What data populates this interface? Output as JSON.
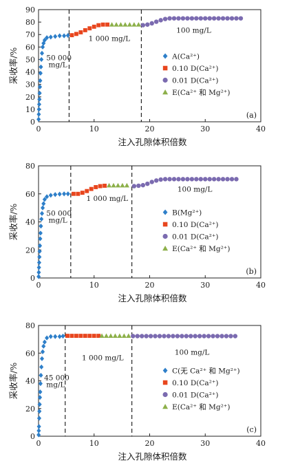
{
  "chart_data": [
    {
      "type": "scatter",
      "panel_label": "(a)",
      "xlabel": "注入孔隙体积倍数",
      "ylabel": "采收率/%",
      "xlim": [
        0,
        40
      ],
      "ylim": [
        0,
        90
      ],
      "xticks": [
        0,
        10,
        20,
        30,
        40
      ],
      "yticks": [
        0,
        10,
        20,
        30,
        40,
        50,
        60,
        70,
        80,
        90
      ],
      "grid": false,
      "legend_position": "lower-right",
      "boundaries": [
        5.5,
        18.5
      ],
      "annotations": [
        {
          "text": "50 000",
          "x": 1.4,
          "y": 49.5
        },
        {
          "text": "mg/L",
          "x": 1.8,
          "y": 44.0
        },
        {
          "text": "1 000 mg/L",
          "x": 9.0,
          "y": 65.0
        },
        {
          "text": "100 mg/L",
          "x": 24.8,
          "y": 71.5
        }
      ],
      "series": [
        {
          "name": "A(Ca²⁺)",
          "marker": "diamond",
          "color": "#2e7fc9",
          "x": [
            0.02,
            0.05,
            0.08,
            0.12,
            0.16,
            0.2,
            0.25,
            0.3,
            0.36,
            0.43,
            0.52,
            0.62,
            0.75,
            0.9,
            1.1,
            1.5,
            2.2,
            3.0,
            3.8,
            4.6,
            5.3
          ],
          "y": [
            2,
            6,
            10,
            14,
            18,
            23,
            28,
            33,
            39,
            44,
            50,
            55,
            60,
            63,
            65.5,
            67.5,
            68,
            68.5,
            69,
            69,
            69.3
          ]
        },
        {
          "name": "0.10 D(Ca²⁺)",
          "marker": "square",
          "color": "#e8461e",
          "x": [
            6.0,
            6.8,
            7.6,
            8.4,
            9.2,
            10.0,
            10.8,
            11.6,
            12.4
          ],
          "y": [
            69.5,
            70.5,
            71.8,
            73.5,
            75,
            76.3,
            77.5,
            78,
            78
          ]
        },
        {
          "name": "0.01 D(Ca²⁺)",
          "marker": "circle",
          "color": "#7b6bb0",
          "x": [
            18.8,
            19.6,
            20.4,
            21.2,
            22.0,
            22.8,
            23.6,
            24.4,
            25.2,
            26.0,
            26.8,
            27.6,
            28.4,
            29.2,
            30.0,
            30.8,
            31.6,
            32.4,
            33.2,
            34.0,
            34.8,
            35.6,
            36.4
          ],
          "y": [
            77.5,
            78,
            79,
            80.3,
            81.5,
            82.5,
            83,
            83,
            83,
            83,
            83,
            83,
            83,
            83,
            83,
            83,
            83,
            83,
            83,
            83,
            83,
            83,
            83
          ]
        },
        {
          "name": "E(Ca²⁺ 和 Mg²⁺)",
          "marker": "triangle",
          "color": "#8db04a",
          "x": [
            13.2,
            14.0,
            14.8,
            15.6,
            16.4,
            17.2,
            18.0
          ],
          "y": [
            78,
            78,
            78,
            78,
            78,
            78,
            78
          ]
        }
      ]
    },
    {
      "type": "scatter",
      "panel_label": "(b)",
      "xlabel": "注入孔隙体积倍数",
      "ylabel": "采收率/%",
      "xlim": [
        0,
        40
      ],
      "ylim": [
        0,
        80
      ],
      "xticks": [
        0,
        10,
        20,
        30,
        40
      ],
      "yticks": [
        0,
        20,
        40,
        60,
        80
      ],
      "grid": false,
      "legend_position": "lower-right",
      "boundaries": [
        5.8,
        16.8
      ],
      "annotations": [
        {
          "text": "50 000",
          "x": 1.4,
          "y": 44.5
        },
        {
          "text": "mg/L",
          "x": 1.8,
          "y": 39.5
        },
        {
          "text": "1 000 mg/L",
          "x": 8.6,
          "y": 55.0
        },
        {
          "text": "100 mg/L",
          "x": 25.0,
          "y": 61.5
        }
      ],
      "series": [
        {
          "name": "B(Mg²⁺)",
          "marker": "diamond",
          "color": "#2e7fc9",
          "x": [
            0.02,
            0.05,
            0.08,
            0.12,
            0.16,
            0.2,
            0.25,
            0.3,
            0.36,
            0.43,
            0.52,
            0.62,
            0.75,
            0.9,
            1.1,
            1.5,
            2.2,
            3.0,
            3.8,
            4.6,
            5.3
          ],
          "y": [
            1,
            4,
            7.5,
            11,
            15,
            19,
            23,
            28,
            32,
            37,
            42,
            46,
            50,
            53,
            56,
            58,
            59,
            59.5,
            59.8,
            60,
            60
          ]
        },
        {
          "name": "0.10 D(Ca²⁺)",
          "marker": "square",
          "color": "#e8461e",
          "x": [
            6.3,
            7.1,
            7.9,
            8.7,
            9.5,
            10.3,
            11.1,
            11.9
          ],
          "y": [
            60,
            60,
            60.8,
            62,
            63.5,
            64.8,
            65.5,
            65.8
          ]
        },
        {
          "name": "0.01 D(Ca²⁺)",
          "marker": "circle",
          "color": "#7b6bb0",
          "x": [
            17.2,
            18.0,
            18.8,
            19.6,
            20.4,
            21.2,
            22.0,
            22.8,
            23.6,
            24.4,
            25.2,
            26.0,
            26.8,
            27.6,
            28.4,
            29.2,
            30.0,
            30.8,
            31.6,
            32.4,
            33.2,
            34.0,
            34.8,
            35.6
          ],
          "y": [
            65.5,
            65.8,
            66.2,
            67.2,
            68.5,
            69.5,
            70.2,
            70.5,
            70.5,
            70.5,
            70.5,
            70.5,
            70.5,
            70.5,
            70.5,
            70.5,
            70.5,
            70.5,
            70.5,
            70.5,
            70.5,
            70.5,
            70.5,
            70.5
          ]
        },
        {
          "name": "E(Ca²⁺ 和 Mg²⁺)",
          "marker": "triangle",
          "color": "#8db04a",
          "x": [
            12.7,
            13.5,
            14.3,
            15.1,
            15.9
          ],
          "y": [
            66,
            66,
            66,
            66,
            66
          ]
        }
      ]
    },
    {
      "type": "scatter",
      "panel_label": "(c)",
      "xlabel": "注入孔隙体积倍数",
      "ylabel": "采收率/%",
      "xlim": [
        0,
        40
      ],
      "ylim": [
        0,
        80
      ],
      "xticks": [
        0,
        10,
        20,
        30,
        40
      ],
      "yticks": [
        0,
        20,
        40,
        60,
        80
      ],
      "grid": false,
      "legend_position": "lower-right",
      "boundaries": [
        4.8,
        16.8
      ],
      "annotations": [
        {
          "text": "45 000",
          "x": 1.0,
          "y": 40.5
        },
        {
          "text": "mg/L",
          "x": 1.4,
          "y": 35.5
        },
        {
          "text": "1 000 mg/L",
          "x": 7.8,
          "y": 55.0
        },
        {
          "text": "100 mg/L",
          "x": 24.5,
          "y": 59.0
        }
      ],
      "series": [
        {
          "name": "C(无 Ca²⁺ 和 Mg²⁺)",
          "marker": "diamond",
          "color": "#2e7fc9",
          "x": [
            0.02,
            0.05,
            0.08,
            0.12,
            0.16,
            0.2,
            0.25,
            0.3,
            0.36,
            0.43,
            0.52,
            0.62,
            0.75,
            0.9,
            1.1,
            1.5,
            2.2,
            3.0,
            3.8,
            4.4
          ],
          "y": [
            1,
            4,
            7,
            13,
            18,
            23,
            28,
            32,
            38,
            44,
            50,
            56,
            61,
            65,
            68,
            71,
            72,
            72,
            72,
            72.3
          ]
        },
        {
          "name": "0.10 D(Ca²⁺)",
          "marker": "square",
          "color": "#e8461e",
          "x": [
            5.2,
            6.0,
            6.8,
            7.6,
            8.4,
            9.2,
            10.0,
            10.8
          ],
          "y": [
            72.5,
            72.5,
            72.5,
            72.5,
            72.5,
            72.5,
            72.5,
            72.5
          ]
        },
        {
          "name": "0.01 D(Ca²⁺)",
          "marker": "circle",
          "color": "#7b6bb0",
          "x": [
            17.0,
            17.8,
            18.6,
            19.4,
            20.2,
            21.0,
            21.8,
            22.6,
            23.4,
            24.2,
            25.0,
            25.8,
            26.6,
            27.4,
            28.2,
            29.0,
            29.8,
            30.6,
            31.4,
            32.2,
            33.0,
            33.8,
            34.6,
            35.4
          ],
          "y": [
            72.3,
            72.3,
            72.3,
            72.3,
            72.3,
            72.3,
            72.3,
            72.3,
            72.3,
            72.3,
            72.3,
            72.3,
            72.3,
            72.3,
            72.3,
            72.3,
            72.3,
            72.3,
            72.3,
            72.3,
            72.3,
            72.3,
            72.3,
            72.3
          ]
        },
        {
          "name": "E(Ca²⁺ 和 Mg²⁺)",
          "marker": "triangle",
          "color": "#8db04a",
          "x": [
            11.4,
            12.2,
            13.0,
            13.8,
            14.6,
            15.4,
            16.2
          ],
          "y": [
            72.5,
            72.5,
            72.5,
            72.5,
            72.5,
            72.5,
            72.5
          ]
        }
      ]
    }
  ]
}
